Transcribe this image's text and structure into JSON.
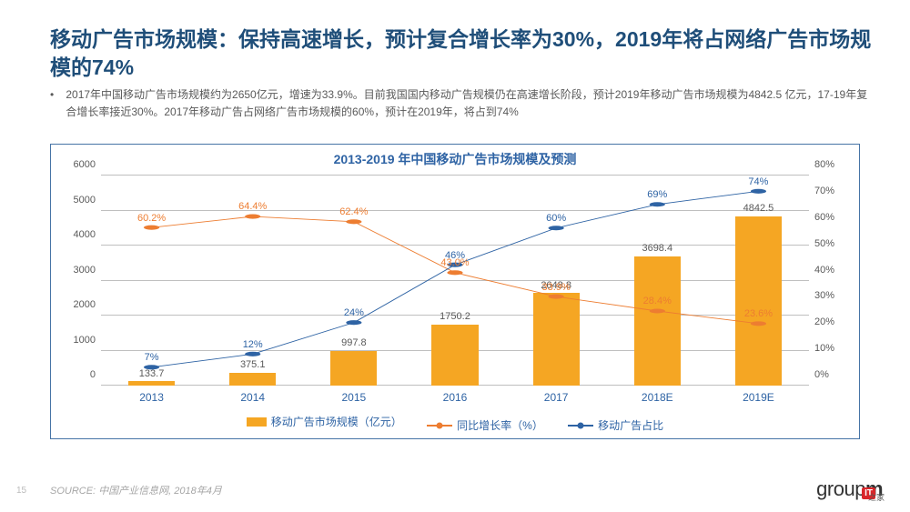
{
  "colors": {
    "title": "#1f4e79",
    "subtitle": "#595959",
    "chart_border": "#4674a6",
    "chart_title": "#2e63a4",
    "grid": "#bfbfbf",
    "axis_text": "#595959",
    "x_text": "#2e63a4",
    "bar": "#f5a623",
    "line1": "#ed7d31",
    "line2": "#2e63a4",
    "source": "#a6a6a6",
    "logo": "#333333"
  },
  "title": "移动广告市场规模：保持高速增长，预计复合增长率为30%，2019年将占网络广告市场规模的74%",
  "bullet": "•",
  "subtitle": "2017年中国移动广告市场规模约为2650亿元，增速为33.9%。目前我国国内移动广告规模仍在高速增长阶段，预计2019年移动广告市场规模为4842.5 亿元，17-19年复合增长率接近30%。2017年移动广告占网络广告市场规模的60%，预计在2019年，将占到74%",
  "chart": {
    "title": "2013-2019 年中国移动广告市场规模及预测",
    "categories": [
      "2013",
      "2014",
      "2015",
      "2016",
      "2017",
      "2018E",
      "2019E"
    ],
    "y_left": {
      "min": 0,
      "max": 6000,
      "step": 1000
    },
    "y_right": {
      "min": 0,
      "max": 80,
      "step": 10,
      "suffix": "%"
    },
    "bars": {
      "label": "移动广告市场规模（亿元）",
      "values": [
        133.7,
        375.1,
        997.8,
        1750.2,
        2648.8,
        3698.4,
        4842.5
      ],
      "show_labels": [
        "133.7",
        "375.1",
        "997.8",
        "1750.2",
        "2648.8",
        "3698.4",
        "4842.5"
      ],
      "color": "#f5a623",
      "width_frac": 0.46
    },
    "line_growth": {
      "label": "同比增长率（%）",
      "values": [
        60.2,
        64.4,
        62.4,
        43.0,
        33.9,
        28.4,
        23.6
      ],
      "show_labels": [
        "60.2%",
        "64.4%",
        "62.4%",
        "43.0%",
        "33.9%",
        "28.4%",
        "23.6%"
      ],
      "color": "#ed7d31"
    },
    "line_share": {
      "label": "移动广告占比",
      "values": [
        7,
        12,
        24,
        46,
        60,
        69,
        74
      ],
      "show_labels": [
        "7%",
        "12%",
        "24%",
        "46%",
        "60%",
        "69%",
        "74%"
      ],
      "color": "#2e63a4"
    }
  },
  "page_number": "15",
  "source_prefix": "SOURCE: ",
  "source_text": "中国产业信息网, 2018年4月",
  "logo_html": "group",
  "logo_bold": "m",
  "it_logo": "IT",
  "it_sub": "之家"
}
